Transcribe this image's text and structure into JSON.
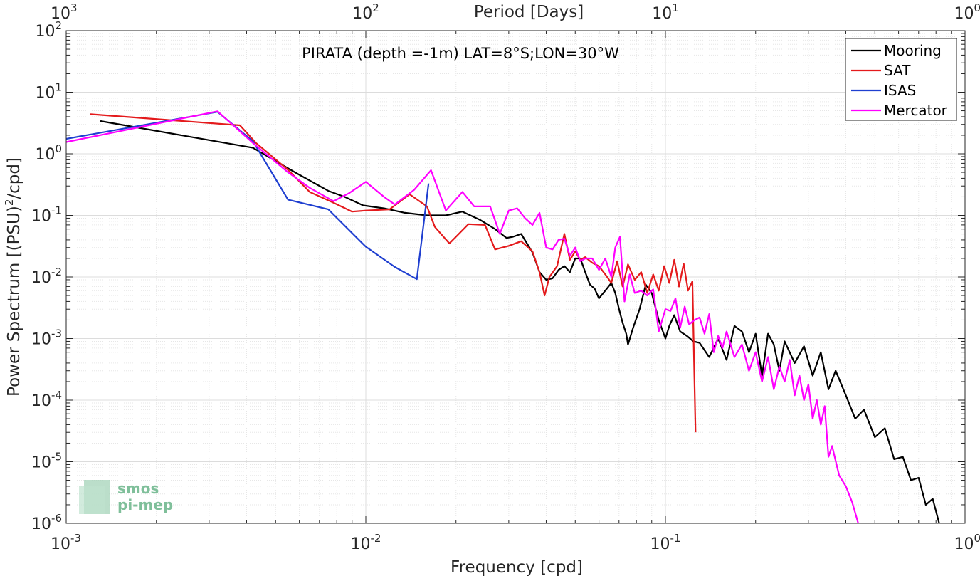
{
  "chart_data": {
    "type": "line",
    "title": "PIRATA (depth =-1m) LAT=8°S;LON=30°W",
    "xlabel": "Frequency [cpd]",
    "ylabel": "Power Spectrum [(PSU)²/cpd]",
    "top_xlabel": "Period [Days]",
    "x_scale": "log",
    "y_scale": "log",
    "xlim": [
      0.001,
      1
    ],
    "ylim": [
      1e-06,
      100
    ],
    "x_ticks": [
      {
        "base": "10",
        "exp": "-3"
      },
      {
        "base": "10",
        "exp": "-2"
      },
      {
        "base": "10",
        "exp": "-1"
      },
      {
        "base": "10",
        "exp": "0"
      }
    ],
    "top_ticks": [
      {
        "base": "10",
        "exp": "3"
      },
      {
        "base": "10",
        "exp": "2"
      },
      {
        "base": "10",
        "exp": "1"
      },
      {
        "base": "10",
        "exp": "0"
      }
    ],
    "y_ticks": [
      {
        "base": "10",
        "exp": "2"
      },
      {
        "base": "10",
        "exp": "1"
      },
      {
        "base": "10",
        "exp": "0"
      },
      {
        "base": "10",
        "exp": "-1"
      },
      {
        "base": "10",
        "exp": "-2"
      },
      {
        "base": "10",
        "exp": "-3"
      },
      {
        "base": "10",
        "exp": "-4"
      },
      {
        "base": "10",
        "exp": "-5"
      },
      {
        "base": "10",
        "exp": "-6"
      }
    ],
    "grid": true,
    "minor_grid": true,
    "legend_position": "top-right",
    "series": [
      {
        "name": "Mooring",
        "color": "#000000",
        "points": [
          [
            0.0013,
            3.4
          ],
          [
            0.0042,
            1.25
          ],
          [
            0.0058,
            0.5
          ],
          [
            0.0075,
            0.25
          ],
          [
            0.0085,
            0.2
          ],
          [
            0.0098,
            0.145
          ],
          [
            0.0115,
            0.13
          ],
          [
            0.0135,
            0.11
          ],
          [
            0.016,
            0.1
          ],
          [
            0.0185,
            0.1
          ],
          [
            0.021,
            0.115
          ],
          [
            0.024,
            0.085
          ],
          [
            0.027,
            0.06
          ],
          [
            0.0295,
            0.043
          ],
          [
            0.031,
            0.045
          ],
          [
            0.033,
            0.05
          ],
          [
            0.036,
            0.025
          ],
          [
            0.038,
            0.012
          ],
          [
            0.04,
            0.009
          ],
          [
            0.042,
            0.0095
          ],
          [
            0.044,
            0.013
          ],
          [
            0.046,
            0.015
          ],
          [
            0.048,
            0.012
          ],
          [
            0.05,
            0.02
          ],
          [
            0.052,
            0.02
          ],
          [
            0.054,
            0.012
          ],
          [
            0.056,
            0.0075
          ],
          [
            0.058,
            0.0065
          ],
          [
            0.06,
            0.0045
          ],
          [
            0.063,
            0.006
          ],
          [
            0.066,
            0.008
          ],
          [
            0.068,
            0.0055
          ],
          [
            0.07,
            0.003
          ],
          [
            0.072,
            0.0018
          ],
          [
            0.074,
            0.0012
          ],
          [
            0.075,
            0.0008
          ],
          [
            0.078,
            0.0015
          ],
          [
            0.082,
            0.003
          ],
          [
            0.086,
            0.0075
          ],
          [
            0.09,
            0.0055
          ],
          [
            0.095,
            0.002
          ],
          [
            0.1,
            0.001
          ],
          [
            0.103,
            0.0016
          ],
          [
            0.107,
            0.0024
          ],
          [
            0.112,
            0.0013
          ],
          [
            0.118,
            0.0011
          ],
          [
            0.124,
            0.0009
          ],
          [
            0.13,
            0.00085
          ],
          [
            0.14,
            0.0005
          ],
          [
            0.15,
            0.001
          ],
          [
            0.16,
            0.00045
          ],
          [
            0.17,
            0.0016
          ],
          [
            0.18,
            0.0013
          ],
          [
            0.19,
            0.0006
          ],
          [
            0.2,
            0.0012
          ],
          [
            0.21,
            0.00025
          ],
          [
            0.22,
            0.0012
          ],
          [
            0.23,
            0.0008
          ],
          [
            0.24,
            0.0003
          ],
          [
            0.25,
            0.0009
          ],
          [
            0.27,
            0.0004
          ],
          [
            0.29,
            0.00075
          ],
          [
            0.31,
            0.00025
          ],
          [
            0.33,
            0.0006
          ],
          [
            0.35,
            0.00015
          ],
          [
            0.37,
            0.0003
          ],
          [
            0.4,
            0.00012
          ],
          [
            0.43,
            5e-05
          ],
          [
            0.46,
            7e-05
          ],
          [
            0.5,
            2.5e-05
          ],
          [
            0.54,
            3.5e-05
          ],
          [
            0.58,
            1.1e-05
          ],
          [
            0.62,
            1.2e-05
          ],
          [
            0.66,
            5e-06
          ],
          [
            0.7,
            5.5e-06
          ],
          [
            0.74,
            2e-06
          ],
          [
            0.78,
            2.5e-06
          ],
          [
            0.82,
            1e-06
          ]
        ]
      },
      {
        "name": "SAT",
        "color": "#e41a1c",
        "points": [
          [
            0.0012,
            4.4
          ],
          [
            0.0038,
            2.9
          ],
          [
            0.0043,
            1.5
          ],
          [
            0.0055,
            0.55
          ],
          [
            0.0065,
            0.24
          ],
          [
            0.0078,
            0.16
          ],
          [
            0.009,
            0.115
          ],
          [
            0.01,
            0.12
          ],
          [
            0.012,
            0.125
          ],
          [
            0.014,
            0.22
          ],
          [
            0.016,
            0.14
          ],
          [
            0.017,
            0.065
          ],
          [
            0.019,
            0.035
          ],
          [
            0.022,
            0.072
          ],
          [
            0.025,
            0.07
          ],
          [
            0.027,
            0.028
          ],
          [
            0.03,
            0.032
          ],
          [
            0.033,
            0.038
          ],
          [
            0.036,
            0.026
          ],
          [
            0.038,
            0.012
          ],
          [
            0.0395,
            0.005
          ],
          [
            0.041,
            0.01
          ],
          [
            0.0435,
            0.015
          ],
          [
            0.046,
            0.05
          ],
          [
            0.048,
            0.019
          ],
          [
            0.05,
            0.026
          ],
          [
            0.052,
            0.019
          ],
          [
            0.054,
            0.021
          ],
          [
            0.057,
            0.017
          ],
          [
            0.06,
            0.015
          ],
          [
            0.063,
            0.011
          ],
          [
            0.066,
            0.008
          ],
          [
            0.069,
            0.018
          ],
          [
            0.072,
            0.007
          ],
          [
            0.075,
            0.016
          ],
          [
            0.079,
            0.009
          ],
          [
            0.083,
            0.012
          ],
          [
            0.087,
            0.0055
          ],
          [
            0.091,
            0.011
          ],
          [
            0.095,
            0.006
          ],
          [
            0.099,
            0.015
          ],
          [
            0.103,
            0.008
          ],
          [
            0.107,
            0.019
          ],
          [
            0.111,
            0.007
          ],
          [
            0.115,
            0.0165
          ],
          [
            0.119,
            0.006
          ],
          [
            0.123,
            0.0085
          ],
          [
            0.126,
            3e-05
          ]
        ]
      },
      {
        "name": "ISAS",
        "color": "#1f3fd0",
        "points": [
          [
            0.001,
            1.75
          ],
          [
            0.0032,
            4.8
          ],
          [
            0.0042,
            1.6
          ],
          [
            0.0055,
            0.18
          ],
          [
            0.0075,
            0.125
          ],
          [
            0.01,
            0.031
          ],
          [
            0.0125,
            0.0145
          ],
          [
            0.0148,
            0.0092
          ],
          [
            0.0162,
            0.33
          ]
        ]
      },
      {
        "name": "Mercator",
        "color": "#ff00ff",
        "points": [
          [
            0.001,
            1.55
          ],
          [
            0.0032,
            4.9
          ],
          [
            0.0042,
            1.5
          ],
          [
            0.0055,
            0.5
          ],
          [
            0.0065,
            0.28
          ],
          [
            0.0078,
            0.17
          ],
          [
            0.0088,
            0.23
          ],
          [
            0.01,
            0.35
          ],
          [
            0.0115,
            0.2
          ],
          [
            0.0125,
            0.15
          ],
          [
            0.0145,
            0.26
          ],
          [
            0.0165,
            0.54
          ],
          [
            0.0185,
            0.12
          ],
          [
            0.021,
            0.24
          ],
          [
            0.023,
            0.14
          ],
          [
            0.026,
            0.14
          ],
          [
            0.028,
            0.05
          ],
          [
            0.03,
            0.12
          ],
          [
            0.032,
            0.13
          ],
          [
            0.034,
            0.09
          ],
          [
            0.036,
            0.07
          ],
          [
            0.038,
            0.11
          ],
          [
            0.04,
            0.03
          ],
          [
            0.042,
            0.028
          ],
          [
            0.044,
            0.04
          ],
          [
            0.046,
            0.042
          ],
          [
            0.048,
            0.022
          ],
          [
            0.05,
            0.03
          ],
          [
            0.052,
            0.018
          ],
          [
            0.054,
            0.02
          ],
          [
            0.057,
            0.02
          ],
          [
            0.06,
            0.013
          ],
          [
            0.063,
            0.02
          ],
          [
            0.066,
            0.01
          ],
          [
            0.068,
            0.03
          ],
          [
            0.0705,
            0.045
          ],
          [
            0.073,
            0.004
          ],
          [
            0.076,
            0.011
          ],
          [
            0.079,
            0.0055
          ],
          [
            0.083,
            0.006
          ],
          [
            0.087,
            0.005
          ],
          [
            0.091,
            0.0063
          ],
          [
            0.095,
            0.0013
          ],
          [
            0.1,
            0.003
          ],
          [
            0.104,
            0.0028
          ],
          [
            0.108,
            0.0045
          ],
          [
            0.112,
            0.0015
          ],
          [
            0.116,
            0.0033
          ],
          [
            0.12,
            0.0017
          ],
          [
            0.125,
            0.002
          ],
          [
            0.13,
            0.0022
          ],
          [
            0.135,
            0.0012
          ],
          [
            0.14,
            0.0025
          ],
          [
            0.145,
            0.0006
          ],
          [
            0.15,
            0.0011
          ],
          [
            0.155,
            0.0007
          ],
          [
            0.16,
            0.0013
          ],
          [
            0.17,
            0.0005
          ],
          [
            0.18,
            0.0008
          ],
          [
            0.19,
            0.0003
          ],
          [
            0.2,
            0.0006
          ],
          [
            0.21,
            0.0002
          ],
          [
            0.22,
            0.0005
          ],
          [
            0.23,
            0.00015
          ],
          [
            0.24,
            0.00035
          ],
          [
            0.25,
            0.0002
          ],
          [
            0.26,
            0.00045
          ],
          [
            0.27,
            0.00012
          ],
          [
            0.28,
            0.00025
          ],
          [
            0.29,
            0.0001
          ],
          [
            0.3,
            0.00018
          ],
          [
            0.31,
            5e-05
          ],
          [
            0.32,
            0.0001
          ],
          [
            0.33,
            4e-05
          ],
          [
            0.34,
            8e-05
          ],
          [
            0.35,
            1.2e-05
          ],
          [
            0.36,
            1.8e-05
          ],
          [
            0.38,
            6e-06
          ],
          [
            0.4,
            4e-06
          ],
          [
            0.42,
            2.2e-06
          ],
          [
            0.44,
            1e-06
          ]
        ]
      }
    ]
  },
  "watermark": {
    "line1": "smos",
    "line2": "pi-mep"
  }
}
